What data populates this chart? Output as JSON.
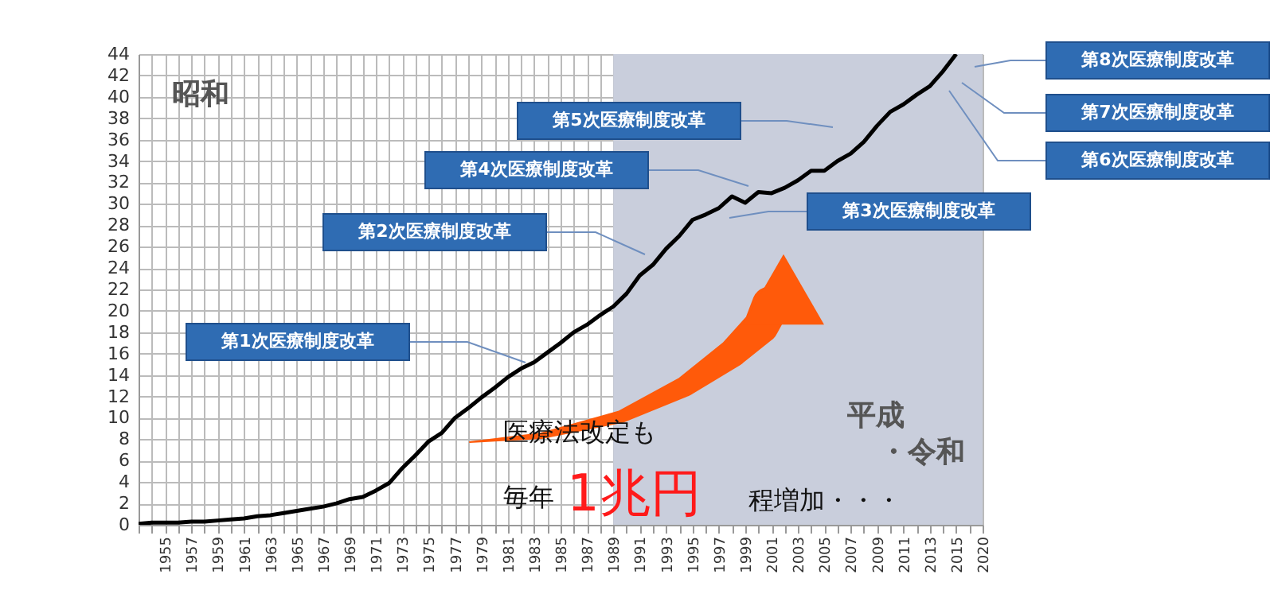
{
  "chart_data": {
    "type": "line",
    "categories": [
      null,
      null,
      "1955",
      null,
      "1957",
      null,
      "1959",
      null,
      "1961",
      null,
      "1963",
      null,
      "1965",
      null,
      "1967",
      null,
      "1969",
      null,
      "1971",
      null,
      "1973",
      null,
      "1975",
      null,
      "1977",
      null,
      "1979",
      null,
      "1981",
      null,
      "1983",
      null,
      "1985",
      null,
      "1987",
      null,
      "1989",
      null,
      "1991",
      null,
      "1993",
      null,
      "1995",
      null,
      "1997",
      null,
      "1999",
      null,
      "2001",
      null,
      "2003",
      null,
      "2005",
      null,
      "2007",
      null,
      "2009",
      null,
      "2011",
      null,
      "2013",
      null,
      "2015",
      null,
      "2020"
    ],
    "series": [
      {
        "color": "#000000",
        "values": [
          0.1,
          0.2,
          0.2,
          0.2,
          0.3,
          0.3,
          0.4,
          0.5,
          0.6,
          0.8,
          0.9,
          1.1,
          1.3,
          1.5,
          1.7,
          2.0,
          2.4,
          2.6,
          3.2,
          3.9,
          5.3,
          6.5,
          7.8,
          8.6,
          10.0,
          10.9,
          11.9,
          12.8,
          13.8,
          14.6,
          15.2,
          16.1,
          17.0,
          18.0,
          18.7,
          19.6,
          20.4,
          21.6,
          23.3,
          24.3,
          25.8,
          27.0,
          28.5,
          29.0,
          29.6,
          30.7,
          30.1,
          31.1,
          31.0,
          31.5,
          32.2,
          33.1,
          33.1,
          34.0,
          34.7,
          35.8,
          37.3,
          38.6,
          39.3,
          40.2,
          41.0,
          42.4,
          44.0,
          null,
          null
        ]
      }
    ],
    "ylim": [
      0,
      44
    ],
    "yticks": [
      0,
      2,
      4,
      6,
      8,
      10,
      12,
      14,
      16,
      18,
      20,
      22,
      24,
      26,
      28,
      30,
      32,
      34,
      36,
      38,
      40,
      42,
      44
    ],
    "grid": true,
    "bands": [
      {
        "axis": "x",
        "from": "1989",
        "to": "2020",
        "color": "#c9cedc"
      }
    ],
    "annotations": [
      "第1次医療制度改革",
      "第2次医療制度改革",
      "第3次医療制度改革",
      "第4次医療制度改革",
      "第5次医療制度改革",
      "第6次医療制度改革",
      "第7次医療制度改革",
      "第8次医療制度改革",
      "昭和",
      "平成",
      "・令和",
      "医療法改定も",
      "毎年",
      "1兆円",
      "程増加・・・"
    ]
  }
}
